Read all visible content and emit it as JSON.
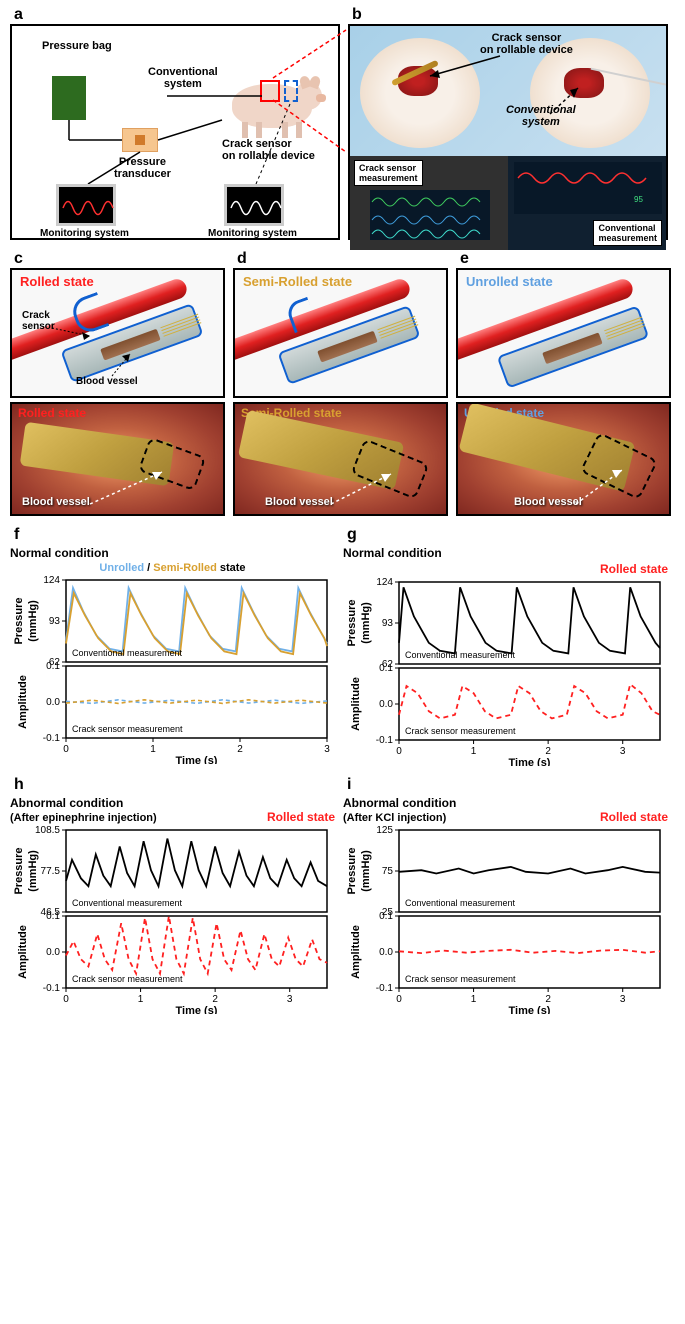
{
  "panel_a": {
    "letter": "a",
    "labels": {
      "pressure_bag": "Pressure bag",
      "conventional_system": "Conventional\nsystem",
      "pressure_transducer": "Pressure\ntransducer",
      "crack_sensor": "Crack sensor\non rollable device",
      "monitoring_left": "Monitoring system",
      "monitoring_right": "Monitoring system"
    },
    "colors": {
      "bag": "#2d6b1f",
      "transducer": "#f6c68f",
      "red_wave": "#ff3030",
      "white_wave": "#ffffff"
    }
  },
  "panel_b": {
    "letter": "b",
    "labels": {
      "crack_sensor_device": "Crack sensor\non rollable device",
      "conventional_system": "Conventional\nsystem",
      "crack_meas": "Crack sensor\nmeasurement",
      "conv_meas": "Conventional\nmeasurement"
    }
  },
  "panel_c": {
    "letter": "c",
    "state": "Rolled state",
    "state_color": "#ff2020",
    "crack_sensor": "Crack\nsensor",
    "blood_vessel": "Blood vessel"
  },
  "panel_d": {
    "letter": "d",
    "state": "Semi-Rolled state",
    "state_color": "#d8a030",
    "blood_vessel": "Blood vessel"
  },
  "panel_e": {
    "letter": "e",
    "state": "Unrolled state",
    "state_color": "#60a0e0",
    "blood_vessel": "Blood vessel"
  },
  "chart_common": {
    "xlabel": "Time (s)",
    "ylabel_top": "Pressure\n(mmHg)",
    "ylabel_bot": "Amplitude",
    "conv_label": "Conventional measurement",
    "crack_label": "Crack sensor measurement",
    "colors": {
      "black": "#000000",
      "red": "#ff2020",
      "blue": "#70b0e8",
      "gold": "#d8a030"
    }
  },
  "panel_f": {
    "letter": "f",
    "title": "Normal condition",
    "legend": "Unrolled / Semi-Rolled state",
    "legend_colors": {
      "unrolled": "#70b0e8",
      "semi": "#d8a030",
      "state_word": "#000000"
    },
    "pressure": {
      "ylim": [
        62,
        124
      ],
      "yticks": [
        62,
        93,
        124
      ],
      "xlim": [
        0,
        3
      ],
      "xticks": [
        0,
        1,
        2,
        3
      ]
    },
    "amplitude": {
      "ylim": [
        -0.1,
        0.1
      ],
      "yticks": [
        -0.1,
        0.0,
        0.1
      ]
    },
    "pressure_blue": [
      [
        0.0,
        78
      ],
      [
        0.08,
        118
      ],
      [
        0.2,
        100
      ],
      [
        0.35,
        82
      ],
      [
        0.5,
        72
      ],
      [
        0.65,
        70
      ],
      [
        0.72,
        118
      ],
      [
        0.85,
        100
      ],
      [
        1.0,
        82
      ],
      [
        1.15,
        72
      ],
      [
        1.3,
        70
      ],
      [
        1.37,
        118
      ],
      [
        1.5,
        100
      ],
      [
        1.65,
        82
      ],
      [
        1.8,
        72
      ],
      [
        1.95,
        70
      ],
      [
        2.02,
        118
      ],
      [
        2.15,
        100
      ],
      [
        2.3,
        82
      ],
      [
        2.45,
        72
      ],
      [
        2.6,
        70
      ],
      [
        2.67,
        118
      ],
      [
        2.8,
        100
      ],
      [
        2.95,
        82
      ],
      [
        3.0,
        76
      ]
    ],
    "pressure_gold": [
      [
        0.0,
        76
      ],
      [
        0.09,
        114
      ],
      [
        0.22,
        97
      ],
      [
        0.37,
        80
      ],
      [
        0.52,
        70
      ],
      [
        0.66,
        68
      ],
      [
        0.74,
        114
      ],
      [
        0.87,
        97
      ],
      [
        1.02,
        80
      ],
      [
        1.17,
        70
      ],
      [
        1.31,
        68
      ],
      [
        1.39,
        114
      ],
      [
        1.52,
        97
      ],
      [
        1.67,
        80
      ],
      [
        1.82,
        70
      ],
      [
        1.96,
        68
      ],
      [
        2.04,
        114
      ],
      [
        2.17,
        97
      ],
      [
        2.32,
        80
      ],
      [
        2.47,
        70
      ],
      [
        2.61,
        68
      ],
      [
        2.69,
        114
      ],
      [
        2.82,
        97
      ],
      [
        2.97,
        80
      ],
      [
        3.0,
        74
      ]
    ],
    "amp_blue": [
      [
        0,
        0.002
      ],
      [
        0.3,
        -0.004
      ],
      [
        0.6,
        0.006
      ],
      [
        0.9,
        -0.003
      ],
      [
        1.2,
        0.005
      ],
      [
        1.5,
        -0.004
      ],
      [
        1.8,
        0.006
      ],
      [
        2.1,
        -0.003
      ],
      [
        2.4,
        0.005
      ],
      [
        2.7,
        -0.004
      ],
      [
        3.0,
        0.003
      ]
    ],
    "amp_gold": [
      [
        0,
        -0.003
      ],
      [
        0.3,
        0.005
      ],
      [
        0.6,
        -0.004
      ],
      [
        0.9,
        0.006
      ],
      [
        1.2,
        -0.003
      ],
      [
        1.5,
        0.005
      ],
      [
        1.8,
        -0.004
      ],
      [
        2.1,
        0.006
      ],
      [
        2.4,
        -0.003
      ],
      [
        2.7,
        0.005
      ],
      [
        3.0,
        -0.003
      ]
    ]
  },
  "panel_g": {
    "letter": "g",
    "title": "Normal condition",
    "state": "Rolled state",
    "state_color": "#ff2020",
    "pressure": {
      "ylim": [
        62,
        124
      ],
      "yticks": [
        62,
        93,
        124
      ],
      "xlim": [
        0,
        3.5
      ],
      "xticks": [
        0,
        1,
        2,
        3
      ]
    },
    "amplitude": {
      "ylim": [
        -0.1,
        0.1
      ],
      "yticks": [
        -0.1,
        0.0,
        0.1
      ]
    },
    "pressure_data": [
      [
        0,
        78
      ],
      [
        0.06,
        120
      ],
      [
        0.2,
        98
      ],
      [
        0.4,
        78
      ],
      [
        0.55,
        72
      ],
      [
        0.75,
        70
      ],
      [
        0.82,
        120
      ],
      [
        0.96,
        98
      ],
      [
        1.16,
        78
      ],
      [
        1.31,
        72
      ],
      [
        1.51,
        70
      ],
      [
        1.58,
        120
      ],
      [
        1.72,
        98
      ],
      [
        1.92,
        78
      ],
      [
        2.07,
        72
      ],
      [
        2.27,
        70
      ],
      [
        2.34,
        120
      ],
      [
        2.48,
        98
      ],
      [
        2.68,
        78
      ],
      [
        2.83,
        72
      ],
      [
        3.03,
        70
      ],
      [
        3.1,
        120
      ],
      [
        3.24,
        98
      ],
      [
        3.44,
        78
      ],
      [
        3.5,
        74
      ]
    ],
    "amp_data": [
      [
        0,
        -0.03
      ],
      [
        0.1,
        0.05
      ],
      [
        0.25,
        0.03
      ],
      [
        0.4,
        -0.02
      ],
      [
        0.55,
        -0.04
      ],
      [
        0.75,
        -0.03
      ],
      [
        0.85,
        0.05
      ],
      [
        1.0,
        0.03
      ],
      [
        1.15,
        -0.02
      ],
      [
        1.3,
        -0.04
      ],
      [
        1.5,
        -0.03
      ],
      [
        1.6,
        0.05
      ],
      [
        1.75,
        0.03
      ],
      [
        1.9,
        -0.02
      ],
      [
        2.05,
        -0.04
      ],
      [
        2.25,
        -0.03
      ],
      [
        2.35,
        0.05
      ],
      [
        2.5,
        0.03
      ],
      [
        2.65,
        -0.02
      ],
      [
        2.8,
        -0.04
      ],
      [
        3.0,
        -0.03
      ],
      [
        3.1,
        0.055
      ],
      [
        3.25,
        0.03
      ],
      [
        3.4,
        -0.02
      ],
      [
        3.5,
        -0.03
      ]
    ]
  },
  "panel_h": {
    "letter": "h",
    "title": "Abnormal  condition",
    "subtitle": "(After epinephrine injection)",
    "state": "Rolled state",
    "state_color": "#ff2020",
    "pressure": {
      "ylim": [
        46.5,
        108.5
      ],
      "yticks": [
        46.5,
        77.5,
        108.5
      ],
      "xlim": [
        0,
        3.5
      ],
      "xticks": [
        0,
        1,
        2,
        3
      ]
    },
    "amplitude": {
      "ylim": [
        -0.1,
        0.1
      ],
      "yticks": [
        -0.1,
        0.0,
        0.1
      ]
    },
    "pressure_data": [
      [
        0,
        70
      ],
      [
        0.08,
        86
      ],
      [
        0.2,
        72
      ],
      [
        0.3,
        66
      ],
      [
        0.4,
        90
      ],
      [
        0.5,
        74
      ],
      [
        0.6,
        66
      ],
      [
        0.72,
        96
      ],
      [
        0.82,
        76
      ],
      [
        0.92,
        66
      ],
      [
        1.04,
        100
      ],
      [
        1.14,
        78
      ],
      [
        1.24,
        66
      ],
      [
        1.36,
        102
      ],
      [
        1.46,
        78
      ],
      [
        1.56,
        66
      ],
      [
        1.68,
        100
      ],
      [
        1.78,
        78
      ],
      [
        1.88,
        66
      ],
      [
        2.0,
        96
      ],
      [
        2.1,
        76
      ],
      [
        2.2,
        66
      ],
      [
        2.32,
        92
      ],
      [
        2.42,
        74
      ],
      [
        2.52,
        66
      ],
      [
        2.64,
        88
      ],
      [
        2.74,
        72
      ],
      [
        2.84,
        66
      ],
      [
        2.96,
        86
      ],
      [
        3.06,
        72
      ],
      [
        3.16,
        66
      ],
      [
        3.28,
        84
      ],
      [
        3.38,
        70
      ],
      [
        3.5,
        66
      ]
    ],
    "amp_data": [
      [
        0,
        -0.01
      ],
      [
        0.1,
        0.03
      ],
      [
        0.2,
        -0.02
      ],
      [
        0.3,
        -0.04
      ],
      [
        0.42,
        0.05
      ],
      [
        0.52,
        -0.02
      ],
      [
        0.62,
        -0.05
      ],
      [
        0.74,
        0.08
      ],
      [
        0.84,
        -0.02
      ],
      [
        0.94,
        -0.06
      ],
      [
        1.06,
        0.095
      ],
      [
        1.16,
        -0.02
      ],
      [
        1.26,
        -0.06
      ],
      [
        1.38,
        0.1
      ],
      [
        1.48,
        -0.02
      ],
      [
        1.58,
        -0.06
      ],
      [
        1.7,
        0.095
      ],
      [
        1.8,
        -0.02
      ],
      [
        1.9,
        -0.06
      ],
      [
        2.02,
        0.08
      ],
      [
        2.12,
        -0.02
      ],
      [
        2.22,
        -0.05
      ],
      [
        2.34,
        0.06
      ],
      [
        2.44,
        -0.02
      ],
      [
        2.54,
        -0.05
      ],
      [
        2.66,
        0.05
      ],
      [
        2.76,
        -0.02
      ],
      [
        2.86,
        -0.04
      ],
      [
        2.98,
        0.04
      ],
      [
        3.08,
        -0.02
      ],
      [
        3.18,
        -0.04
      ],
      [
        3.3,
        0.035
      ],
      [
        3.4,
        -0.02
      ],
      [
        3.5,
        -0.03
      ]
    ]
  },
  "panel_i": {
    "letter": "i",
    "title": "Abnormal condition",
    "subtitle": "(After KCl injection)",
    "state": "Rolled state",
    "state_color": "#ff2020",
    "pressure": {
      "ylim": [
        25,
        125
      ],
      "yticks": [
        25,
        75,
        125
      ],
      "xlim": [
        0,
        3.5
      ],
      "xticks": [
        0,
        1,
        2,
        3
      ]
    },
    "amplitude": {
      "ylim": [
        -0.1,
        0.1
      ],
      "yticks": [
        -0.1,
        0.0,
        0.1
      ]
    },
    "pressure_data": [
      [
        0,
        74
      ],
      [
        0.3,
        76
      ],
      [
        0.5,
        72
      ],
      [
        0.8,
        78
      ],
      [
        1.0,
        72
      ],
      [
        1.2,
        76
      ],
      [
        1.5,
        80
      ],
      [
        1.7,
        74
      ],
      [
        2.0,
        72
      ],
      [
        2.3,
        78
      ],
      [
        2.5,
        72
      ],
      [
        2.8,
        76
      ],
      [
        3.0,
        80
      ],
      [
        3.3,
        74
      ],
      [
        3.5,
        73
      ]
    ],
    "amp_data": [
      [
        0,
        0.002
      ],
      [
        0.3,
        -0.003
      ],
      [
        0.6,
        0.004
      ],
      [
        0.9,
        -0.002
      ],
      [
        1.2,
        0.003
      ],
      [
        1.5,
        0.006
      ],
      [
        1.8,
        -0.002
      ],
      [
        2.1,
        0.003
      ],
      [
        2.4,
        -0.003
      ],
      [
        2.7,
        0.004
      ],
      [
        3.0,
        0.006
      ],
      [
        3.3,
        -0.002
      ],
      [
        3.5,
        0.002
      ]
    ]
  }
}
